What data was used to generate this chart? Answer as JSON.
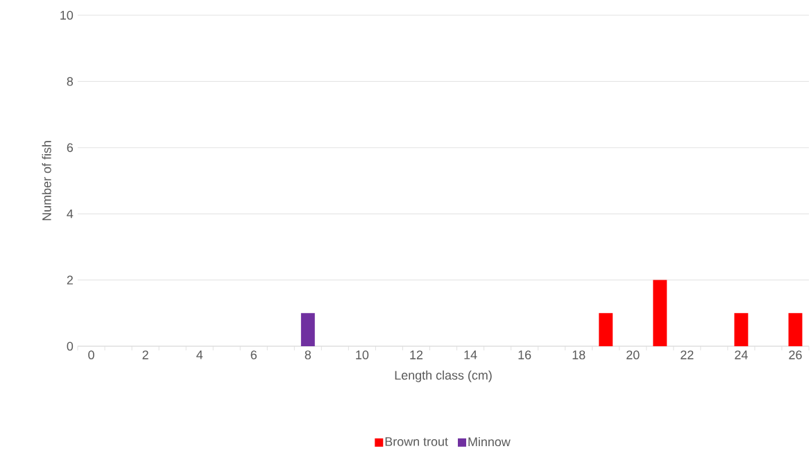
{
  "chart_data": {
    "type": "bar",
    "xlabel": "Length class (cm)",
    "ylabel": "Number of fish",
    "categories": [
      "0",
      null,
      "2",
      null,
      "4",
      null,
      "6",
      null,
      "8",
      null,
      "10",
      null,
      "12",
      null,
      "14",
      null,
      "16",
      null,
      "18",
      null,
      "20",
      null,
      "22",
      null,
      "24",
      null,
      "26"
    ],
    "series": [
      {
        "name": "Brown trout",
        "color": "#ff0000",
        "values": [
          null,
          null,
          null,
          null,
          null,
          null,
          null,
          null,
          null,
          null,
          null,
          null,
          null,
          null,
          null,
          null,
          null,
          null,
          null,
          1,
          null,
          2,
          null,
          null,
          1,
          null,
          1
        ]
      },
      {
        "name": "Minnow",
        "color": "#7030a0",
        "values": [
          null,
          null,
          null,
          null,
          null,
          null,
          null,
          null,
          1,
          null,
          null,
          null,
          null,
          null,
          null,
          null,
          null,
          null,
          null,
          null,
          null,
          null,
          null,
          null,
          null,
          null,
          null
        ]
      }
    ],
    "ylim": [
      0,
      10
    ],
    "yticks": [
      0,
      2,
      4,
      6,
      8,
      10
    ],
    "grid": "y",
    "legend": "bottom"
  }
}
